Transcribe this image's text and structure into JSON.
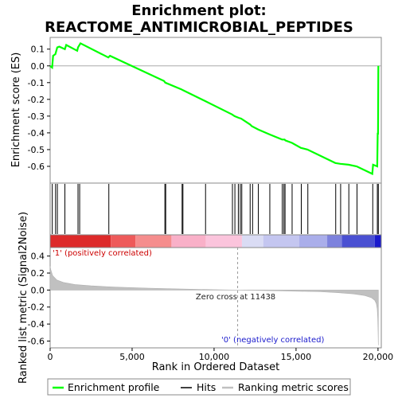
{
  "chart_data": [
    {
      "type": "line",
      "title_line1": "Enrichment plot:",
      "title_line2": "REACTOME_ANTIMICROBIAL_PEPTIDES",
      "ylabel": "Enrichment score (ES)",
      "xlim": [
        0,
        20200
      ],
      "ylim": [
        -0.7,
        0.17
      ],
      "y_ticks": [
        0.1,
        0.0,
        -0.1,
        -0.2,
        -0.3,
        -0.4,
        -0.5,
        -0.6
      ],
      "y_tick_labels": [
        "0.1",
        "0.0",
        "-0.1",
        "-0.2",
        "-0.3",
        "-0.4",
        "-0.5",
        "-0.6"
      ],
      "grid": false,
      "series": [
        {
          "name": "Enrichment profile",
          "color": "#00ff00",
          "x": [
            0,
            120,
            180,
            320,
            430,
            560,
            900,
            980,
            1650,
            1700,
            1850,
            3550,
            3650,
            6950,
            7020,
            8000,
            8100,
            9450,
            11100,
            11250,
            11500,
            11650,
            12200,
            12300,
            12700,
            13400,
            14150,
            14300,
            14350,
            14750,
            15300,
            15700,
            17400,
            17700,
            18200,
            18700,
            19650,
            19700,
            19950,
            19980,
            20000,
            20020
          ],
          "y": [
            0.0,
            -0.01,
            0.06,
            0.07,
            0.11,
            0.115,
            0.1,
            0.125,
            0.09,
            0.11,
            0.135,
            0.05,
            0.06,
            -0.09,
            -0.1,
            -0.14,
            -0.145,
            -0.21,
            -0.29,
            -0.3,
            -0.31,
            -0.315,
            -0.35,
            -0.36,
            -0.38,
            -0.41,
            -0.44,
            -0.44,
            -0.445,
            -0.46,
            -0.49,
            -0.5,
            -0.58,
            -0.585,
            -0.59,
            -0.6,
            -0.645,
            -0.59,
            -0.6,
            -0.4,
            -0.41,
            0.0
          ]
        }
      ]
    },
    {
      "type": "scatter",
      "name": "hits",
      "xlim": [
        0,
        20200
      ],
      "hit_color": "#000000",
      "hits_x": [
        130,
        330,
        440,
        900,
        1700,
        1800,
        3580,
        7000,
        7050,
        8050,
        8100,
        9480,
        11120,
        11270,
        11480,
        11600,
        11690,
        12200,
        12350,
        12700,
        13400,
        14160,
        14260,
        14330,
        14760,
        15320,
        15720,
        17420,
        17720,
        18220,
        18720,
        19680,
        19960,
        20020
      ]
    },
    {
      "type": "heatmap",
      "name": "rank-colour-bar",
      "xlim": [
        0,
        20200
      ],
      "bands": [
        {
          "from": 0,
          "to": 3700,
          "color": "#dd2a2a"
        },
        {
          "from": 3700,
          "to": 5200,
          "color": "#ee5a5a"
        },
        {
          "from": 5200,
          "to": 7400,
          "color": "#f58d8d"
        },
        {
          "from": 7400,
          "to": 9500,
          "color": "#f9b0c8"
        },
        {
          "from": 9500,
          "to": 11700,
          "color": "#fbc4dc"
        },
        {
          "from": 11700,
          "to": 13000,
          "color": "#dadcf4"
        },
        {
          "from": 13000,
          "to": 15200,
          "color": "#c4c6f0"
        },
        {
          "from": 15200,
          "to": 16900,
          "color": "#aaaeea"
        },
        {
          "from": 16900,
          "to": 17800,
          "color": "#7d82dd"
        },
        {
          "from": 17800,
          "to": 19800,
          "color": "#4a50d2"
        },
        {
          "from": 19800,
          "to": 20200,
          "color": "#1a1acc"
        }
      ],
      "label_positive": "'1' (positively correlated)",
      "label_negative": "'0' (negatively correlated)"
    },
    {
      "type": "area",
      "ylabel": "Ranked list metric (Signal2Noise)",
      "xlabel": "Rank in Ordered Dataset",
      "xlim": [
        0,
        20200
      ],
      "ylim": [
        -0.68,
        0.5
      ],
      "x_ticks": [
        0,
        5000,
        10000,
        15000,
        20000
      ],
      "x_tick_labels": [
        "0",
        "5,000",
        "10,000",
        "15,000",
        "20,000"
      ],
      "y_ticks": [
        0.4,
        0.2,
        0.0,
        -0.2,
        -0.4,
        -0.6
      ],
      "y_tick_labels": [
        "0.4",
        "0.2",
        "0.0",
        "-0.2",
        "-0.4",
        "-0.6"
      ],
      "fill_color": "#c0c0c0",
      "zero_cross": 11438,
      "zero_cross_label": "Zero cross at 11438",
      "series": [
        {
          "x": [
            0,
            40,
            150,
            400,
            800,
            1500,
            2500,
            4000,
            6000,
            8000,
            10000,
            11438,
            13000,
            15000,
            16500,
            17500,
            18500,
            19200,
            19600,
            19800,
            19900,
            19950,
            19980,
            20000,
            20020
          ],
          "y": [
            0.28,
            0.24,
            0.17,
            0.12,
            0.09,
            0.065,
            0.05,
            0.035,
            0.022,
            0.012,
            0.005,
            0.0,
            -0.006,
            -0.013,
            -0.02,
            -0.03,
            -0.045,
            -0.065,
            -0.09,
            -0.12,
            -0.16,
            -0.22,
            -0.32,
            -0.45,
            -0.65
          ]
        }
      ]
    }
  ],
  "legend": {
    "items": [
      {
        "label": "Enrichment profile",
        "color": "#00ff00"
      },
      {
        "label": "Hits",
        "color": "#000000"
      },
      {
        "label": "Ranking metric scores",
        "color": "#c0c0c0"
      }
    ]
  }
}
